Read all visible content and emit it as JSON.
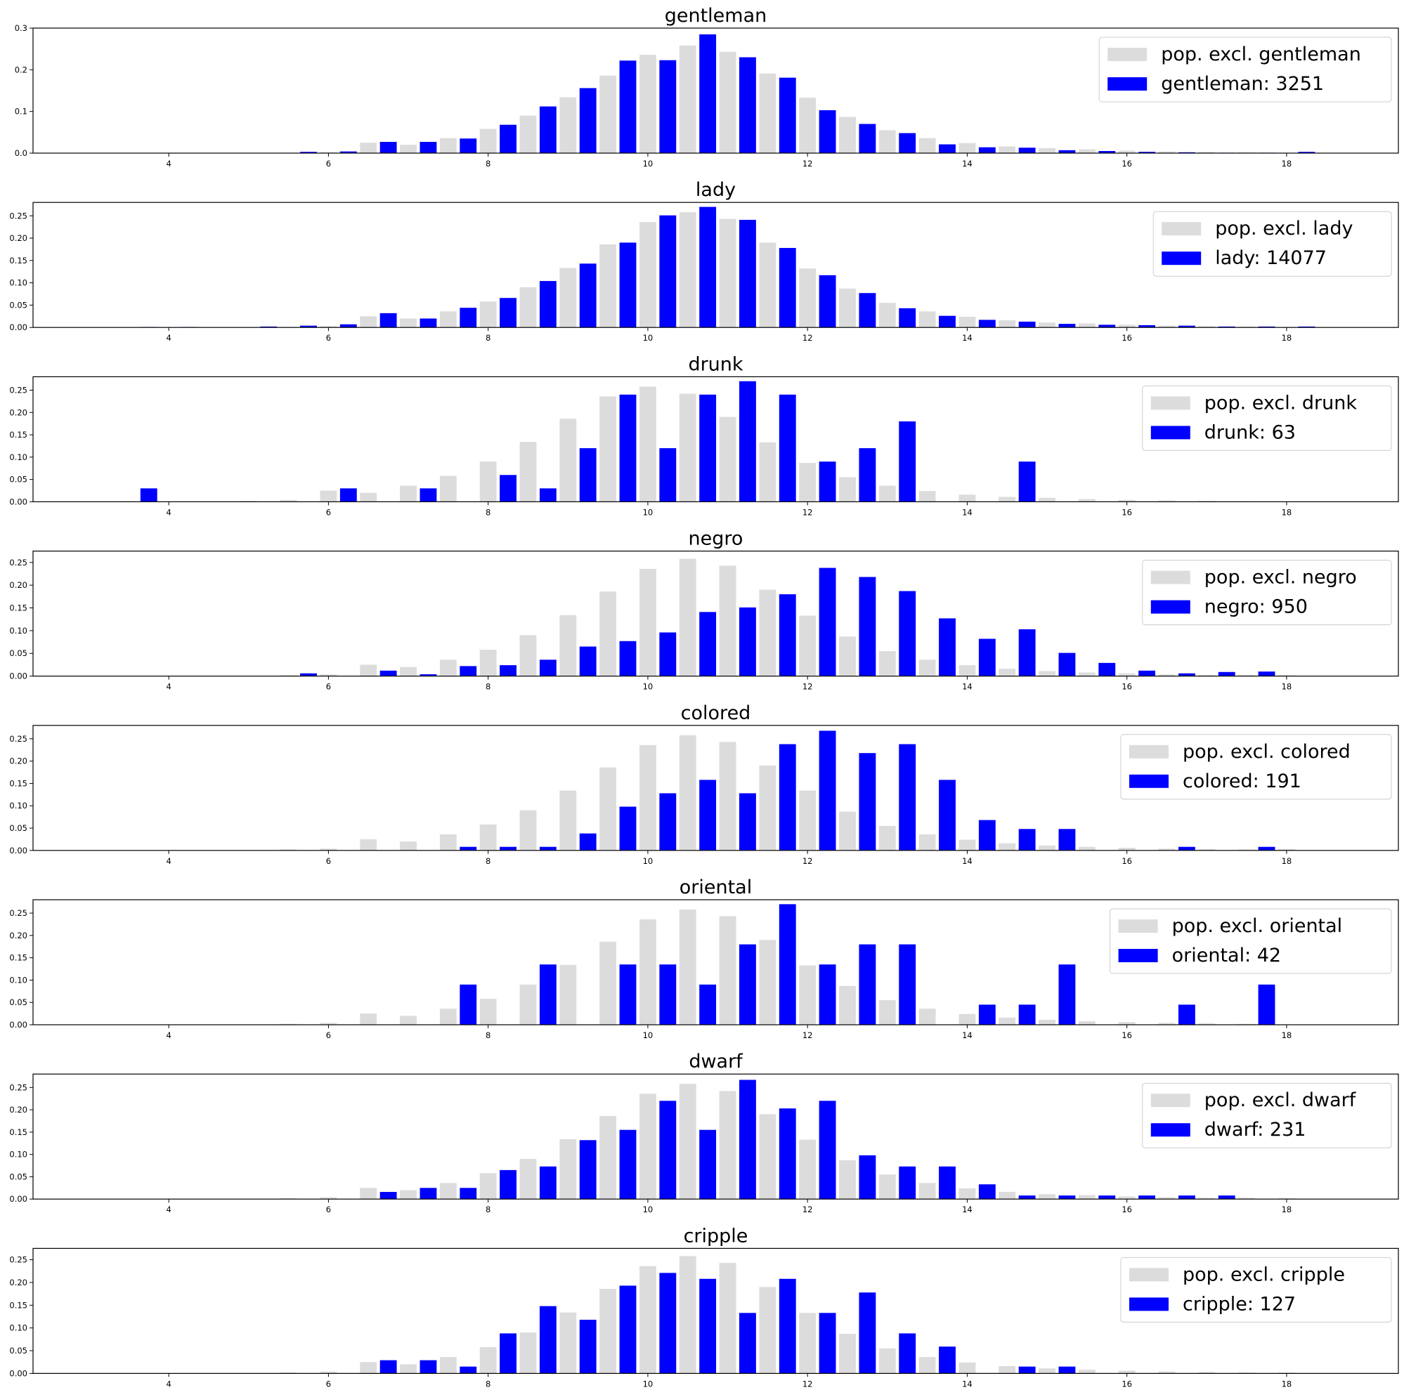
{
  "chart_data": [
    {
      "type": "bar",
      "title": "gentleman",
      "x": [
        3.5,
        4.0,
        4.5,
        5.0,
        5.5,
        6.0,
        6.5,
        7.0,
        7.5,
        8.0,
        8.5,
        9.0,
        9.5,
        10.0,
        10.5,
        11.0,
        11.5,
        12.0,
        12.5,
        13.0,
        13.5,
        14.0,
        14.5,
        15.0,
        15.5,
        16.0,
        16.5,
        17.0,
        17.5,
        18.0
      ],
      "series": [
        {
          "name": "pop. excl. gentleman",
          "color": "#dcdcdc",
          "values": [
            0,
            0,
            0,
            0,
            0.001,
            0.002,
            0.025,
            0.02,
            0.036,
            0.058,
            0.09,
            0.134,
            0.186,
            0.236,
            0.258,
            0.243,
            0.191,
            0.133,
            0.087,
            0.055,
            0.036,
            0.024,
            0.016,
            0.012,
            0.009,
            0.006,
            0.004,
            0.003,
            0.002,
            0.001
          ]
        },
        {
          "name": "gentleman: 3251",
          "color": "#0000ff",
          "values": [
            0,
            0,
            0,
            0,
            0.003,
            0.004,
            0.027,
            0.027,
            0.035,
            0.068,
            0.112,
            0.156,
            0.222,
            0.223,
            0.285,
            0.23,
            0.181,
            0.103,
            0.07,
            0.048,
            0.021,
            0.014,
            0.013,
            0.007,
            0.005,
            0.003,
            0.002,
            0.001,
            0.001,
            0.003
          ]
        }
      ],
      "xticks": [
        4,
        6,
        8,
        10,
        12,
        14,
        16,
        18
      ],
      "yticks": [
        0.0,
        0.1,
        0.2,
        0.3
      ],
      "ytick_labels": [
        "0.0",
        "0.1",
        "0.2",
        "0.3"
      ],
      "ylim": [
        0,
        0.3
      ],
      "xlim": [
        2.3,
        19.4
      ],
      "legend": "upper right"
    },
    {
      "type": "bar",
      "title": "lady",
      "x": [
        3.5,
        4.0,
        4.5,
        5.0,
        5.5,
        6.0,
        6.5,
        7.0,
        7.5,
        8.0,
        8.5,
        9.0,
        9.5,
        10.0,
        10.5,
        11.0,
        11.5,
        12.0,
        12.5,
        13.0,
        13.5,
        14.0,
        14.5,
        15.0,
        15.5,
        16.0,
        16.5,
        17.0,
        17.5,
        18.0
      ],
      "series": [
        {
          "name": "pop. excl. lady",
          "color": "#dcdcdc",
          "values": [
            0,
            0,
            0,
            0,
            0.001,
            0.003,
            0.025,
            0.02,
            0.036,
            0.058,
            0.09,
            0.133,
            0.186,
            0.236,
            0.258,
            0.243,
            0.19,
            0.132,
            0.087,
            0.055,
            0.036,
            0.024,
            0.016,
            0.011,
            0.009,
            0.006,
            0.004,
            0.003,
            0.002,
            0.001
          ]
        },
        {
          "name": "lady: 14077",
          "color": "#0000ff",
          "values": [
            0.001,
            0.001,
            0,
            0.002,
            0.004,
            0.007,
            0.032,
            0.02,
            0.044,
            0.066,
            0.104,
            0.143,
            0.19,
            0.251,
            0.27,
            0.241,
            0.178,
            0.117,
            0.077,
            0.043,
            0.026,
            0.017,
            0.013,
            0.008,
            0.006,
            0.005,
            0.004,
            0.002,
            0.002,
            0.002
          ]
        }
      ],
      "xticks": [
        4,
        6,
        8,
        10,
        12,
        14,
        16,
        18
      ],
      "yticks": [
        0.0,
        0.05,
        0.1,
        0.15,
        0.2,
        0.25
      ],
      "ytick_labels": [
        "0.00",
        "0.05",
        "0.10",
        "0.15",
        "0.20",
        "0.25"
      ],
      "ylim": [
        0,
        0.28
      ],
      "xlim": [
        2.3,
        19.4
      ],
      "legend": "upper right"
    },
    {
      "type": "bar",
      "title": "drunk",
      "x": [
        3.5,
        4.0,
        4.5,
        5.0,
        5.5,
        6.0,
        6.5,
        7.0,
        7.5,
        8.0,
        8.5,
        9.0,
        9.5,
        10.0,
        10.5,
        11.0,
        11.5,
        12.0,
        12.5,
        13.0,
        13.5,
        14.0,
        14.5,
        15.0,
        15.5,
        16.0,
        16.5,
        17.0,
        17.5,
        18.0
      ],
      "series": [
        {
          "name": "pop. excl. drunk",
          "color": "#dcdcdc",
          "values": [
            0.001,
            0,
            0,
            0.002,
            0.004,
            0.025,
            0.02,
            0.036,
            0.058,
            0.09,
            0.134,
            0.186,
            0.236,
            0.258,
            0.242,
            0.19,
            0.133,
            0.087,
            0.055,
            0.036,
            0.024,
            0.016,
            0.011,
            0.009,
            0.006,
            0.004,
            0.003,
            0.002,
            0.001,
            0
          ]
        },
        {
          "name": "drunk: 63",
          "color": "#0000ff",
          "values": [
            0.03,
            0,
            0,
            0,
            0,
            0.03,
            0,
            0.03,
            0,
            0.06,
            0.03,
            0.12,
            0.24,
            0.12,
            0.24,
            0.27,
            0.24,
            0.09,
            0.12,
            0.18,
            0,
            0,
            0.09,
            0,
            0,
            0,
            0,
            0,
            0,
            0
          ]
        }
      ],
      "xticks": [
        4,
        6,
        8,
        10,
        12,
        14,
        16,
        18
      ],
      "yticks": [
        0.0,
        0.05,
        0.1,
        0.15,
        0.2,
        0.25
      ],
      "ytick_labels": [
        "0.00",
        "0.05",
        "0.10",
        "0.15",
        "0.20",
        "0.25"
      ],
      "ylim": [
        0,
        0.28
      ],
      "xlim": [
        2.3,
        19.4
      ],
      "legend": "upper right"
    },
    {
      "type": "bar",
      "title": "negro",
      "x": [
        3.5,
        4.0,
        4.5,
        5.0,
        5.5,
        6.0,
        6.5,
        7.0,
        7.5,
        8.0,
        8.5,
        9.0,
        9.5,
        10.0,
        10.5,
        11.0,
        11.5,
        12.0,
        12.5,
        13.0,
        13.5,
        14.0,
        14.5,
        15.0,
        15.5,
        16.0,
        16.5,
        17.0,
        17.5,
        18.0
      ],
      "series": [
        {
          "name": "pop. excl. negro",
          "color": "#dcdcdc",
          "values": [
            0,
            0,
            0,
            0,
            0.002,
            0.004,
            0.025,
            0.02,
            0.036,
            0.058,
            0.09,
            0.134,
            0.186,
            0.236,
            0.258,
            0.243,
            0.19,
            0.133,
            0.087,
            0.055,
            0.036,
            0.024,
            0.016,
            0.011,
            0.008,
            0.006,
            0.004,
            0.003,
            0.003,
            0.002
          ]
        },
        {
          "name": "negro: 950",
          "color": "#0000ff",
          "values": [
            0,
            0,
            0,
            0,
            0.006,
            0,
            0.012,
            0.004,
            0.022,
            0.024,
            0.036,
            0.065,
            0.077,
            0.096,
            0.141,
            0.151,
            0.18,
            0.238,
            0.218,
            0.187,
            0.127,
            0.082,
            0.103,
            0.051,
            0.029,
            0.012,
            0.006,
            0.009,
            0.01,
            0
          ]
        }
      ],
      "xticks": [
        4,
        6,
        8,
        10,
        12,
        14,
        16,
        18
      ],
      "yticks": [
        0.0,
        0.05,
        0.1,
        0.15,
        0.2,
        0.25
      ],
      "ytick_labels": [
        "0.00",
        "0.05",
        "0.10",
        "0.15",
        "0.20",
        "0.25"
      ],
      "ylim": [
        0,
        0.275
      ],
      "xlim": [
        2.3,
        19.4
      ],
      "legend": "upper right"
    },
    {
      "type": "bar",
      "title": "colored",
      "x": [
        3.5,
        4.0,
        4.5,
        5.0,
        5.5,
        6.0,
        6.5,
        7.0,
        7.5,
        8.0,
        8.5,
        9.0,
        9.5,
        10.0,
        10.5,
        11.0,
        11.5,
        12.0,
        12.5,
        13.0,
        13.5,
        14.0,
        14.5,
        15.0,
        15.5,
        16.0,
        16.5,
        17.0,
        17.5,
        18.0
      ],
      "series": [
        {
          "name": "pop. excl. colored",
          "color": "#dcdcdc",
          "values": [
            0,
            0,
            0,
            0,
            0.002,
            0.004,
            0.025,
            0.02,
            0.036,
            0.058,
            0.09,
            0.134,
            0.186,
            0.236,
            0.258,
            0.243,
            0.19,
            0.134,
            0.087,
            0.055,
            0.036,
            0.024,
            0.016,
            0.011,
            0.008,
            0.006,
            0.004,
            0.003,
            0.002,
            0.003
          ]
        },
        {
          "name": "colored: 191",
          "color": "#0000ff",
          "values": [
            0,
            0,
            0,
            0,
            0,
            0,
            0,
            0,
            0.008,
            0.008,
            0.008,
            0.038,
            0.098,
            0.128,
            0.158,
            0.128,
            0.238,
            0.268,
            0.218,
            0.238,
            0.158,
            0.068,
            0.048,
            0.048,
            0,
            0,
            0.008,
            0,
            0.008,
            0
          ]
        }
      ],
      "xticks": [
        4,
        6,
        8,
        10,
        12,
        14,
        16,
        18
      ],
      "yticks": [
        0.0,
        0.05,
        0.1,
        0.15,
        0.2,
        0.25
      ],
      "ytick_labels": [
        "0.00",
        "0.05",
        "0.10",
        "0.15",
        "0.20",
        "0.25"
      ],
      "ylim": [
        0,
        0.28
      ],
      "xlim": [
        2.3,
        19.4
      ],
      "legend": "upper right"
    },
    {
      "type": "bar",
      "title": "oriental",
      "x": [
        3.5,
        4.0,
        4.5,
        5.0,
        5.5,
        6.0,
        6.5,
        7.0,
        7.5,
        8.0,
        8.5,
        9.0,
        9.5,
        10.0,
        10.5,
        11.0,
        11.5,
        12.0,
        12.5,
        13.0,
        13.5,
        14.0,
        14.5,
        15.0,
        15.5,
        16.0,
        16.5,
        17.0,
        17.5,
        18.0
      ],
      "series": [
        {
          "name": "pop. excl. oriental",
          "color": "#dcdcdc",
          "values": [
            0,
            0,
            0,
            0,
            0.002,
            0.004,
            0.025,
            0.02,
            0.036,
            0.058,
            0.09,
            0.134,
            0.186,
            0.236,
            0.258,
            0.243,
            0.19,
            0.133,
            0.087,
            0.055,
            0.036,
            0.024,
            0.016,
            0.011,
            0.008,
            0.006,
            0.004,
            0.003,
            0.002,
            0
          ]
        },
        {
          "name": "oriental: 42",
          "color": "#0000ff",
          "values": [
            0,
            0,
            0,
            0,
            0,
            0,
            0,
            0,
            0.09,
            0,
            0.135,
            0,
            0.135,
            0.135,
            0.09,
            0.18,
            0.27,
            0.135,
            0.18,
            0.18,
            0,
            0.045,
            0.045,
            0.135,
            0,
            0,
            0.045,
            0,
            0.09,
            0
          ]
        }
      ],
      "xticks": [
        4,
        6,
        8,
        10,
        12,
        14,
        16,
        18
      ],
      "yticks": [
        0.0,
        0.05,
        0.1,
        0.15,
        0.2,
        0.25
      ],
      "ytick_labels": [
        "0.00",
        "0.05",
        "0.10",
        "0.15",
        "0.20",
        "0.25"
      ],
      "ylim": [
        0,
        0.28
      ],
      "xlim": [
        2.3,
        19.4
      ],
      "legend": "upper right"
    },
    {
      "type": "bar",
      "title": "dwarf",
      "x": [
        3.5,
        4.0,
        4.5,
        5.0,
        5.5,
        6.0,
        6.5,
        7.0,
        7.5,
        8.0,
        8.5,
        9.0,
        9.5,
        10.0,
        10.5,
        11.0,
        11.5,
        12.0,
        12.5,
        13.0,
        13.5,
        14.0,
        14.5,
        15.0,
        15.5,
        16.0,
        16.5,
        17.0,
        17.5,
        18.0
      ],
      "series": [
        {
          "name": "pop. excl. dwarf",
          "color": "#dcdcdc",
          "values": [
            0,
            0,
            0,
            0,
            0.002,
            0.004,
            0.025,
            0.02,
            0.036,
            0.058,
            0.09,
            0.134,
            0.186,
            0.236,
            0.258,
            0.242,
            0.19,
            0.133,
            0.087,
            0.055,
            0.036,
            0.024,
            0.016,
            0.011,
            0.009,
            0.006,
            0.004,
            0.003,
            0.003,
            0.002
          ]
        },
        {
          "name": "dwarf: 231",
          "color": "#0000ff",
          "values": [
            0,
            0,
            0,
            0,
            0,
            0,
            0.016,
            0.025,
            0.025,
            0.065,
            0.073,
            0.132,
            0.155,
            0.22,
            0.155,
            0.267,
            0.203,
            0.22,
            0.098,
            0.073,
            0.073,
            0.033,
            0.008,
            0.008,
            0.008,
            0.008,
            0.008,
            0.008,
            0,
            0
          ]
        }
      ],
      "xticks": [
        4,
        6,
        8,
        10,
        12,
        14,
        16,
        18
      ],
      "yticks": [
        0.0,
        0.05,
        0.1,
        0.15,
        0.2,
        0.25
      ],
      "ytick_labels": [
        "0.00",
        "0.05",
        "0.10",
        "0.15",
        "0.20",
        "0.25"
      ],
      "ylim": [
        0,
        0.28
      ],
      "xlim": [
        2.3,
        19.4
      ],
      "legend": "upper right"
    },
    {
      "type": "bar",
      "title": "cripple",
      "x": [
        3.5,
        4.0,
        4.5,
        5.0,
        5.5,
        6.0,
        6.5,
        7.0,
        7.5,
        8.0,
        8.5,
        9.0,
        9.5,
        10.0,
        10.5,
        11.0,
        11.5,
        12.0,
        12.5,
        13.0,
        13.5,
        14.0,
        14.5,
        15.0,
        15.5,
        16.0,
        16.5,
        17.0,
        17.5,
        18.0
      ],
      "series": [
        {
          "name": "pop. excl. cripple",
          "color": "#dcdcdc",
          "values": [
            0,
            0,
            0,
            0,
            0.002,
            0.004,
            0.025,
            0.02,
            0.036,
            0.058,
            0.09,
            0.134,
            0.186,
            0.236,
            0.258,
            0.243,
            0.19,
            0.133,
            0.087,
            0.055,
            0.036,
            0.024,
            0.016,
            0.011,
            0.008,
            0.006,
            0.004,
            0.003,
            0.002,
            0.002
          ]
        },
        {
          "name": "cripple: 127",
          "color": "#0000ff",
          "values": [
            0,
            0,
            0,
            0,
            0,
            0,
            0.029,
            0.029,
            0.015,
            0.088,
            0.148,
            0.118,
            0.193,
            0.221,
            0.208,
            0.133,
            0.208,
            0.133,
            0.178,
            0.088,
            0.059,
            0,
            0.015,
            0.015,
            0,
            0,
            0,
            0,
            0,
            0
          ]
        }
      ],
      "xticks": [
        4,
        6,
        8,
        10,
        12,
        14,
        16,
        18
      ],
      "yticks": [
        0.0,
        0.05,
        0.1,
        0.15,
        0.2,
        0.25
      ],
      "ytick_labels": [
        "0.00",
        "0.05",
        "0.10",
        "0.15",
        "0.20",
        "0.25"
      ],
      "ylim": [
        0,
        0.275
      ],
      "xlim": [
        2.3,
        19.4
      ],
      "legend": "upper right"
    }
  ]
}
